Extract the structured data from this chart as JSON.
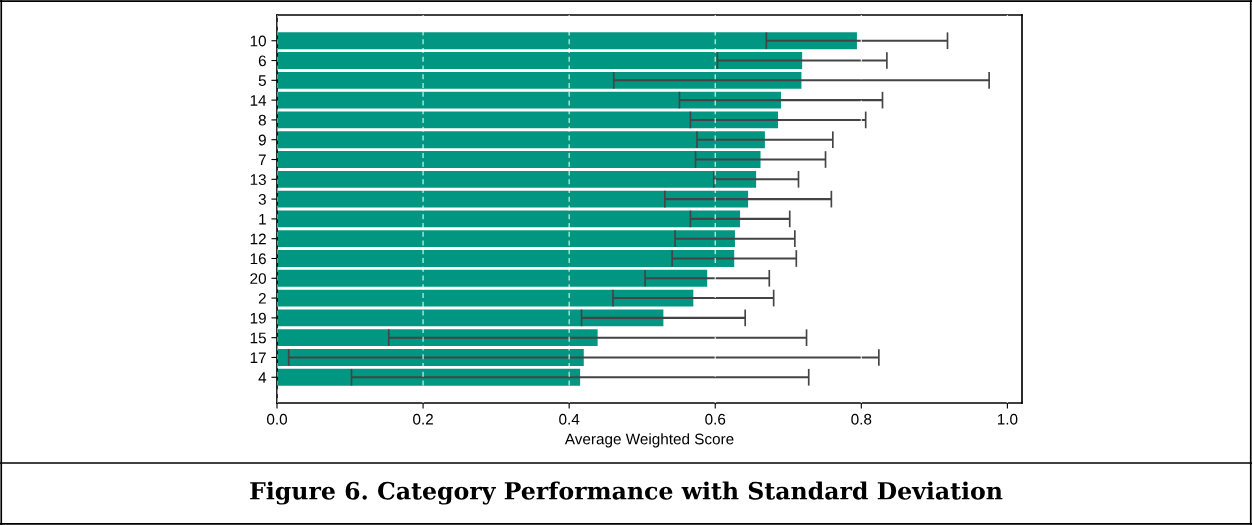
{
  "chart_data": {
    "type": "bar",
    "orientation": "horizontal",
    "title": "Figure 6. Category Performance with Standard Deviation",
    "xlabel": "Average Weighted Score",
    "categories": [
      "10",
      "6",
      "5",
      "14",
      "8",
      "9",
      "7",
      "13",
      "3",
      "1",
      "12",
      "16",
      "20",
      "2",
      "19",
      "15",
      "17",
      "4"
    ],
    "values": [
      0.794,
      0.719,
      0.718,
      0.69,
      0.686,
      0.668,
      0.662,
      0.656,
      0.645,
      0.634,
      0.627,
      0.626,
      0.589,
      0.57,
      0.529,
      0.439,
      0.42,
      0.415
    ],
    "errors": [
      0.124,
      0.116,
      0.257,
      0.139,
      0.12,
      0.093,
      0.089,
      0.058,
      0.114,
      0.068,
      0.082,
      0.085,
      0.085,
      0.11,
      0.112,
      0.286,
      0.404,
      0.313
    ],
    "color": "#009682",
    "xlim": [
      0,
      1.02
    ],
    "xticks": [
      {
        "value": 0,
        "label": "0.0"
      },
      {
        "value": 0.2,
        "label": "0.2"
      },
      {
        "value": 0.4,
        "label": "0.4"
      },
      {
        "value": 0.6,
        "label": "0.6"
      },
      {
        "value": 0.8,
        "label": "0.8"
      },
      {
        "value": 1,
        "label": "1.0"
      }
    ],
    "grid": "x"
  }
}
